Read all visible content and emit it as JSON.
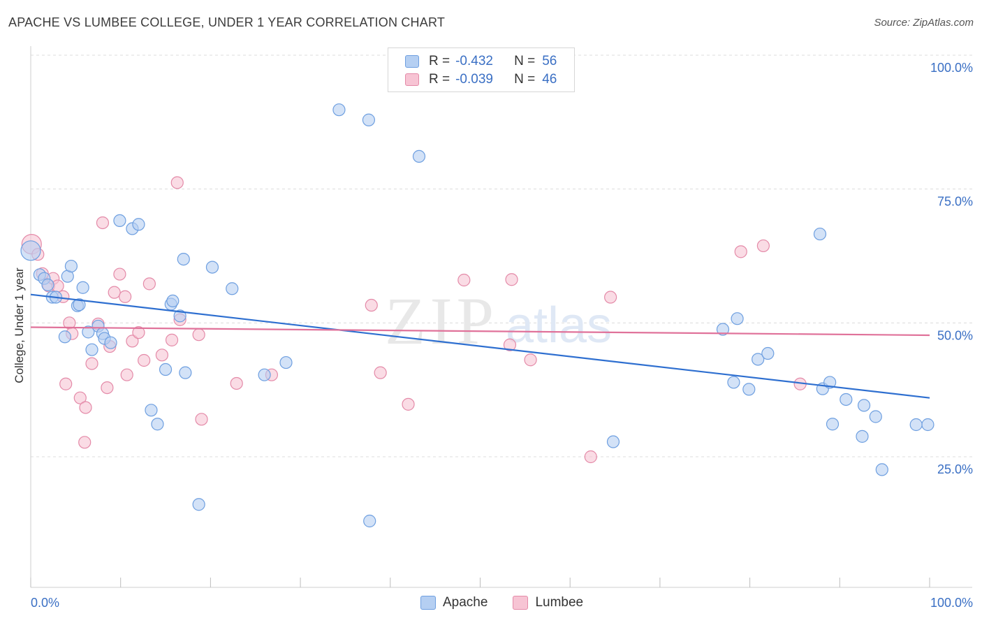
{
  "title": "APACHE VS LUMBEE COLLEGE, UNDER 1 YEAR CORRELATION CHART",
  "source": "Source: ZipAtlas.com",
  "watermark": {
    "zip": "ZIP",
    "atlas": "atlas"
  },
  "legend": {
    "apache": {
      "r_label": "R =",
      "r_value": "-0.432",
      "n_label": "N =",
      "n_value": "56"
    },
    "lumbee": {
      "r_label": "R =",
      "r_value": "-0.039",
      "n_label": "N =",
      "n_value": "46"
    }
  },
  "bottom_legend": {
    "apache": "Apache",
    "lumbee": "Lumbee"
  },
  "colors": {
    "apache_fill": "#b5cff2",
    "apache_stroke": "#6e9fe0",
    "apache_line": "#2e6fd0",
    "lumbee_fill": "#f7c4d4",
    "lumbee_stroke": "#e48aa8",
    "lumbee_line": "#e0729a",
    "axis_label": "#3a6fc4",
    "grid": "#dcdcdc"
  },
  "chart_data": {
    "type": "scatter",
    "title": "APACHE VS LUMBEE COLLEGE, UNDER 1 YEAR CORRELATION CHART",
    "xlabel": "",
    "ylabel": "College, Under 1 year",
    "xlim": [
      0,
      100
    ],
    "ylim": [
      0,
      105
    ],
    "x_tick_labels": [
      "0.0%",
      "100.0%"
    ],
    "y_ticks": [
      25,
      50,
      75,
      100
    ],
    "y_tick_labels": [
      "25.0%",
      "50.0%",
      "75.0%",
      "100.0%"
    ],
    "grid": true,
    "series": [
      {
        "name": "Apache",
        "r": -0.432,
        "n": 56,
        "trend": {
          "x": [
            0,
            100
          ],
          "y": [
            55.3,
            36.0
          ]
        },
        "points": [
          [
            0,
            63.5
          ],
          [
            1,
            59
          ],
          [
            1.5,
            58.3
          ],
          [
            1.9,
            57.1
          ],
          [
            2.4,
            54.8
          ],
          [
            2.8,
            54.8
          ],
          [
            4.1,
            58.7
          ],
          [
            3.8,
            47.4
          ],
          [
            5.2,
            53.2
          ],
          [
            5.4,
            53.4
          ],
          [
            4.5,
            60.6
          ],
          [
            5.8,
            56.6
          ],
          [
            6.4,
            48.3
          ],
          [
            6.8,
            45.0
          ],
          [
            7.5,
            49.4
          ],
          [
            8.0,
            48.0
          ],
          [
            8.2,
            47.1
          ],
          [
            8.9,
            46.3
          ],
          [
            9.9,
            69.1
          ],
          [
            11.3,
            67.6
          ],
          [
            12.0,
            68.4
          ],
          [
            13.4,
            33.7
          ],
          [
            14.1,
            31.1
          ],
          [
            15.0,
            41.3
          ],
          [
            15.6,
            53.5
          ],
          [
            15.8,
            54.1
          ],
          [
            16.6,
            51.3
          ],
          [
            17.0,
            61.9
          ],
          [
            17.2,
            40.7
          ],
          [
            18.7,
            16.1
          ],
          [
            20.2,
            60.4
          ],
          [
            22.4,
            56.4
          ],
          [
            26.0,
            40.3
          ],
          [
            28.4,
            42.6
          ],
          [
            34.3,
            89.8
          ],
          [
            37.6,
            87.9
          ],
          [
            37.7,
            13.0
          ],
          [
            43.2,
            81.1
          ],
          [
            64.8,
            27.8
          ],
          [
            77.0,
            48.8
          ],
          [
            78.2,
            38.9
          ],
          [
            78.6,
            50.8
          ],
          [
            79.9,
            37.6
          ],
          [
            80.9,
            43.2
          ],
          [
            82.0,
            44.3
          ],
          [
            87.8,
            66.6
          ],
          [
            88.1,
            37.7
          ],
          [
            88.9,
            38.9
          ],
          [
            89.2,
            31.1
          ],
          [
            90.7,
            35.7
          ],
          [
            92.5,
            28.8
          ],
          [
            92.7,
            34.6
          ],
          [
            94.0,
            32.5
          ],
          [
            94.7,
            22.6
          ],
          [
            98.5,
            31.0
          ],
          [
            99.8,
            31.0
          ]
        ]
      },
      {
        "name": "Lumbee",
        "r": -0.039,
        "n": 46,
        "trend": {
          "x": [
            0,
            100
          ],
          "y": [
            49.2,
            47.7
          ]
        },
        "points": [
          [
            0.1,
            64.7
          ],
          [
            0.8,
            62.8
          ],
          [
            1.3,
            59.2
          ],
          [
            2.0,
            56.9
          ],
          [
            2.5,
            58.3
          ],
          [
            3.0,
            56.9
          ],
          [
            3.6,
            54.9
          ],
          [
            3.9,
            38.6
          ],
          [
            4.3,
            50.0
          ],
          [
            4.6,
            48.0
          ],
          [
            5.5,
            36.0
          ],
          [
            6.0,
            27.7
          ],
          [
            6.1,
            34.2
          ],
          [
            6.8,
            42.4
          ],
          [
            7.5,
            49.8
          ],
          [
            8.0,
            68.7
          ],
          [
            8.5,
            37.9
          ],
          [
            8.8,
            45.6
          ],
          [
            9.3,
            55.7
          ],
          [
            9.9,
            59.1
          ],
          [
            10.5,
            54.9
          ],
          [
            10.7,
            40.3
          ],
          [
            11.3,
            46.6
          ],
          [
            12.0,
            48.2
          ],
          [
            12.6,
            43.0
          ],
          [
            13.2,
            57.3
          ],
          [
            14.6,
            44.0
          ],
          [
            15.7,
            46.8
          ],
          [
            16.3,
            76.2
          ],
          [
            16.6,
            50.6
          ],
          [
            18.7,
            47.8
          ],
          [
            19.0,
            32.0
          ],
          [
            22.9,
            38.7
          ],
          [
            26.8,
            40.3
          ],
          [
            37.9,
            53.3
          ],
          [
            38.9,
            40.7
          ],
          [
            42.0,
            34.8
          ],
          [
            48.2,
            58.0
          ],
          [
            53.3,
            45.9
          ],
          [
            53.5,
            58.1
          ],
          [
            55.6,
            43.1
          ],
          [
            62.3,
            25.0
          ],
          [
            64.5,
            54.8
          ],
          [
            79.0,
            63.3
          ],
          [
            81.5,
            64.4
          ],
          [
            85.6,
            38.6
          ]
        ]
      }
    ]
  }
}
